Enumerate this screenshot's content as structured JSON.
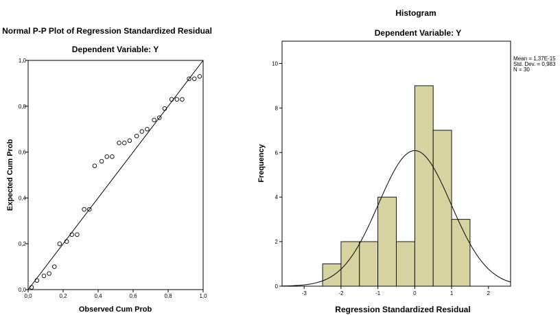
{
  "chart_data": [
    {
      "type": "scatter",
      "title": "Normal P-P Plot of Regression Standardized Residual",
      "subtitle": "Dependent Variable: Y",
      "xlabel": "Observed Cum Prob",
      "ylabel": "Expected Cum Prob",
      "xlim": [
        0,
        1
      ],
      "ylim": [
        0,
        1
      ],
      "xticks": [
        "0,0",
        "0,2",
        "0,4",
        "0,6",
        "0,8",
        "1,0"
      ],
      "yticks": [
        "0,0",
        "0,2",
        "0,4",
        "0,6",
        "0,8",
        "1,0"
      ],
      "grid": false,
      "reference_line": [
        [
          0,
          0
        ],
        [
          1,
          1
        ]
      ],
      "points": {
        "x": [
          0.02,
          0.05,
          0.09,
          0.12,
          0.15,
          0.18,
          0.22,
          0.25,
          0.28,
          0.32,
          0.35,
          0.38,
          0.42,
          0.45,
          0.48,
          0.52,
          0.55,
          0.58,
          0.62,
          0.65,
          0.68,
          0.72,
          0.75,
          0.78,
          0.82,
          0.85,
          0.88,
          0.92,
          0.95,
          0.98
        ],
        "y": [
          0.01,
          0.04,
          0.06,
          0.07,
          0.1,
          0.2,
          0.21,
          0.24,
          0.24,
          0.35,
          0.35,
          0.54,
          0.56,
          0.58,
          0.58,
          0.64,
          0.64,
          0.65,
          0.67,
          0.69,
          0.7,
          0.74,
          0.75,
          0.79,
          0.83,
          0.83,
          0.83,
          0.92,
          0.92,
          0.93
        ]
      }
    },
    {
      "type": "bar",
      "title": "Histogram",
      "subtitle": "Dependent Variable: Y",
      "xlabel": "Regression Standardized Residual",
      "ylabel": "Frequency",
      "bin_edges": [
        -2.5,
        -2.0,
        -1.5,
        -1.0,
        -0.5,
        0.0,
        0.5,
        1.0,
        1.5
      ],
      "values": [
        1,
        2,
        2,
        4,
        2,
        9,
        7,
        3
      ],
      "xlim": [
        -3.6,
        2.6
      ],
      "ylim": [
        0,
        11
      ],
      "xticks": [
        -3,
        -2,
        -1,
        0,
        1,
        2
      ],
      "yticks": [
        0,
        2,
        4,
        6,
        8,
        10
      ],
      "grid": false,
      "bar_color": "#d6d3a0",
      "normal_curve": {
        "mean": 0.0,
        "sd": 0.983,
        "n": 30,
        "bin_width": 0.5
      },
      "stats": [
        "Mean = 1,37E-15",
        "Std. Dev. = 0,983",
        "N = 30"
      ],
      "legend_position": "top-right"
    }
  ]
}
